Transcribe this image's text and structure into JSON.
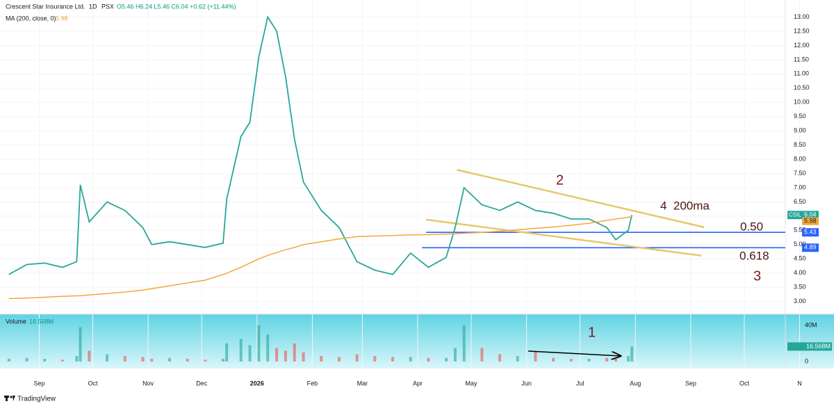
{
  "header": {
    "symbol": "Crescent Star Insurance Ltd.",
    "interval": "1D",
    "exchange": "PSX",
    "ohlc": "O5.46 H6.24 L5.46 C6.04 +0.62 (+11.44%)"
  },
  "chart_data": [
    {
      "type": "line",
      "x": [
        0,
        10,
        20,
        30,
        38,
        40,
        45,
        55,
        65,
        75,
        80,
        90,
        100,
        110,
        120,
        122,
        130,
        135,
        140,
        145,
        150,
        155,
        160,
        165,
        175,
        185,
        195,
        205,
        215,
        225,
        235,
        245,
        250,
        255,
        265,
        275,
        285,
        295,
        305,
        315,
        325,
        335,
        340,
        347,
        349
      ],
      "xlim": [
        -5,
        435
      ],
      "xticks": [
        {
          "value": 17,
          "label": "Sep"
        },
        {
          "value": 47,
          "label": "Oct"
        },
        {
          "value": 78,
          "label": "Nov"
        },
        {
          "value": 108,
          "label": "Dec"
        },
        {
          "value": 139,
          "label": "2026"
        },
        {
          "value": 170,
          "label": "Feb"
        },
        {
          "value": 198,
          "label": "Mar"
        },
        {
          "value": 229,
          "label": "Apr"
        },
        {
          "value": 259,
          "label": "May"
        },
        {
          "value": 290,
          "label": "Jun"
        },
        {
          "value": 320,
          "label": "Jul"
        },
        {
          "value": 351,
          "label": "Aug"
        },
        {
          "value": 382,
          "label": "Sep"
        },
        {
          "value": 412,
          "label": "Oct"
        },
        {
          "value": 443,
          "label": "N"
        }
      ],
      "ylim": [
        2.6,
        13.6
      ],
      "yticks": [
        {
          "value": 3,
          "label": "3.00"
        },
        {
          "value": 3.5,
          "label": "3.50"
        },
        {
          "value": 4,
          "label": "4.00"
        },
        {
          "value": 4.5,
          "label": "4.50"
        },
        {
          "value": 5,
          "label": "5.00"
        },
        {
          "value": 5.5,
          "label": "5.50"
        },
        {
          "value": 6,
          "label": "6.00"
        },
        {
          "value": 6.5,
          "label": "6.50"
        },
        {
          "value": 7,
          "label": "7.00"
        },
        {
          "value": 7.5,
          "label": "7.50"
        },
        {
          "value": 8,
          "label": "8.00"
        },
        {
          "value": 8.5,
          "label": "8.50"
        },
        {
          "value": 9,
          "label": "9.00"
        },
        {
          "value": 9.5,
          "label": "9.50"
        },
        {
          "value": 10,
          "label": "10.00"
        },
        {
          "value": 10.5,
          "label": "10.50"
        },
        {
          "value": 11,
          "label": "11.00"
        },
        {
          "value": 11.5,
          "label": "11.50"
        },
        {
          "value": 12,
          "label": "12.00"
        },
        {
          "value": 12.5,
          "label": "12.50"
        },
        {
          "value": 13,
          "label": "13.00"
        }
      ],
      "series": [
        {
          "name": "CSIL",
          "color": "#26a69a",
          "values": [
            3.95,
            4.3,
            4.35,
            4.2,
            4.4,
            7.1,
            5.8,
            6.5,
            6.2,
            5.6,
            5.0,
            5.1,
            5.0,
            4.9,
            5.05,
            6.6,
            8.8,
            9.3,
            11.6,
            13.0,
            12.5,
            10.9,
            8.7,
            7.2,
            6.2,
            5.6,
            4.4,
            4.1,
            3.95,
            4.7,
            4.2,
            4.55,
            5.6,
            7.0,
            6.4,
            6.2,
            6.5,
            6.2,
            6.1,
            5.9,
            5.9,
            5.6,
            5.17,
            5.5,
            6.04
          ]
        },
        {
          "name": "MA (200, close, 0)",
          "color": "#f0a73a",
          "values": [
            3.1,
            3.12,
            3.15,
            3.18,
            3.2,
            3.2,
            3.23,
            3.28,
            3.33,
            3.4,
            3.45,
            3.55,
            3.65,
            3.75,
            3.95,
            3.99,
            4.2,
            4.35,
            4.5,
            4.62,
            4.72,
            4.82,
            4.9,
            5.0,
            5.1,
            5.2,
            5.28,
            5.3,
            5.32,
            5.34,
            5.35,
            5.37,
            5.38,
            5.4,
            5.43,
            5.47,
            5.52,
            5.57,
            5.62,
            5.68,
            5.75,
            5.85,
            5.9,
            5.96,
            5.98
          ]
        }
      ],
      "levels": [
        5.43,
        4.89
      ],
      "level_color": "#2962ff",
      "trendlines": [
        [
          251,
          7.63,
          389.5,
          5.61
        ],
        [
          233.7,
          5.88,
          388,
          4.61
        ]
      ],
      "trendline_color": "#e6c76a",
      "annotations": [
        "2",
        "4  200ma",
        "0.50",
        "0.618",
        "3",
        "1"
      ]
    },
    {
      "type": "bar",
      "title": "Volume",
      "values": [
        3,
        4,
        3,
        2,
        6,
        38,
        12,
        8,
        6,
        5,
        3,
        4,
        3,
        2,
        3,
        20,
        25,
        18,
        40,
        30,
        15,
        12,
        20,
        10,
        6,
        5,
        8,
        6,
        5,
        5,
        4,
        4,
        15,
        40,
        15,
        8,
        6,
        12,
        4,
        3,
        3,
        4,
        4,
        6,
        16.568
      ],
      "value_labels": [
        null,
        null,
        null,
        null,
        null,
        null,
        null,
        null,
        null,
        null,
        null,
        null,
        null,
        null,
        null,
        null,
        null,
        null,
        null,
        null,
        null,
        null,
        null,
        null,
        null,
        null,
        null,
        null,
        null,
        null,
        null,
        null,
        null,
        null,
        null,
        null,
        null,
        null,
        null,
        null,
        null,
        null,
        null,
        null,
        "16.568M"
      ],
      "ylim": [
        0,
        50
      ],
      "yticks": [
        {
          "value": 40,
          "label": "40M"
        },
        0
      ],
      "up_color": "#26a69a",
      "down_color": "#ef5350"
    }
  ],
  "footer": {
    "brand": "TradingView"
  }
}
